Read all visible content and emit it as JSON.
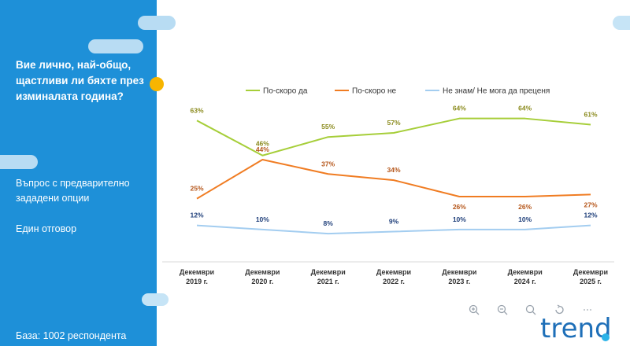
{
  "sidebar": {
    "question": "Вие лично, най-общо, щастливи ли бяхте през изминалата година?",
    "note1": "Въпрос с предварително зададени опции",
    "note2": "Един отговор",
    "base": "База:  1002 респондента"
  },
  "toolbar": {
    "icons": [
      "zoom-in-icon",
      "zoom-out-icon",
      "search-icon",
      "reset-icon",
      "more-icon"
    ]
  },
  "logo": {
    "text": "trend"
  },
  "colors": {
    "sidebar": "#1e90d8",
    "yes": "#a6ce39",
    "no": "#f07c22",
    "dunno": "#a3cdf0"
  },
  "chart_data": {
    "type": "line",
    "title": "",
    "categories": [
      [
        "Декември",
        "2019 г."
      ],
      [
        "Декември",
        "2020 г."
      ],
      [
        "Декември",
        "2021 г."
      ],
      [
        "Декември",
        "2022 г."
      ],
      [
        "Декември",
        "2023 г."
      ],
      [
        "Декември",
        "2024 г."
      ],
      [
        "Декември",
        "2025 г."
      ]
    ],
    "series": [
      {
        "name": "По-скоро да",
        "values": [
          63,
          46,
          55,
          57,
          64,
          64,
          61
        ],
        "color": "#a6ce39",
        "label_color": "#8b8b1e"
      },
      {
        "name": "По-скоро не",
        "values": [
          25,
          44,
          37,
          34,
          26,
          26,
          27
        ],
        "color": "#f07c22",
        "label_color": "#b5561a"
      },
      {
        "name": "Не знам/ Не мога да преценя",
        "values": [
          12,
          10,
          8,
          9,
          10,
          10,
          12
        ],
        "color": "#a3cdf0",
        "label_color": "#1f3f7a"
      }
    ],
    "value_suffix": "%",
    "ylim": [
      0,
      70
    ],
    "legend": "top"
  }
}
